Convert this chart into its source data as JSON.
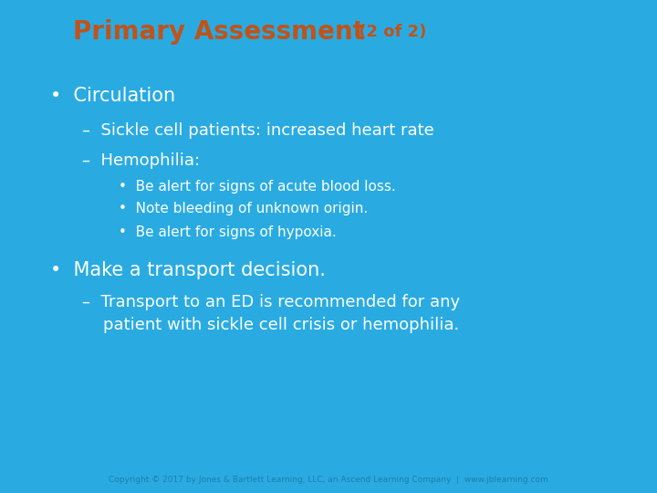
{
  "background_color": "#29ABE2",
  "title_main": "Primary Assessment",
  "title_main_color": "#C0531A",
  "title_suffix": " (2 of 2)",
  "title_suffix_color": "#C0531A",
  "title_main_fontsize": 20,
  "title_suffix_fontsize": 13,
  "content_color": "#FFFFFF",
  "bullet1": "Circulation",
  "bullet1_fontsize": 15,
  "sub1a": "–  Sickle cell patients: increased heart rate",
  "sub1b": "–  Hemophilia:",
  "sub_fontsize": 13,
  "sub2a": "•  Be alert for signs of acute blood loss.",
  "sub2b": "•  Note bleeding of unknown origin.",
  "sub2c": "•  Be alert for signs of hypoxia.",
  "sub2_fontsize": 11,
  "bullet2": "Make a transport decision.",
  "bullet2_fontsize": 15,
  "sub3_line1": "–  Transport to an ED is recommended for any",
  "sub3_line2": "    patient with sickle cell crisis or hemophilia.",
  "sub3_fontsize": 13,
  "copyright": "Copyright © 2017 by Jones & Bartlett Learning, LLC, an Ascend Learning Company  |  www.jblearning.com",
  "copyright_color": "#1A7FAD",
  "copyright_fontsize": 6.5
}
